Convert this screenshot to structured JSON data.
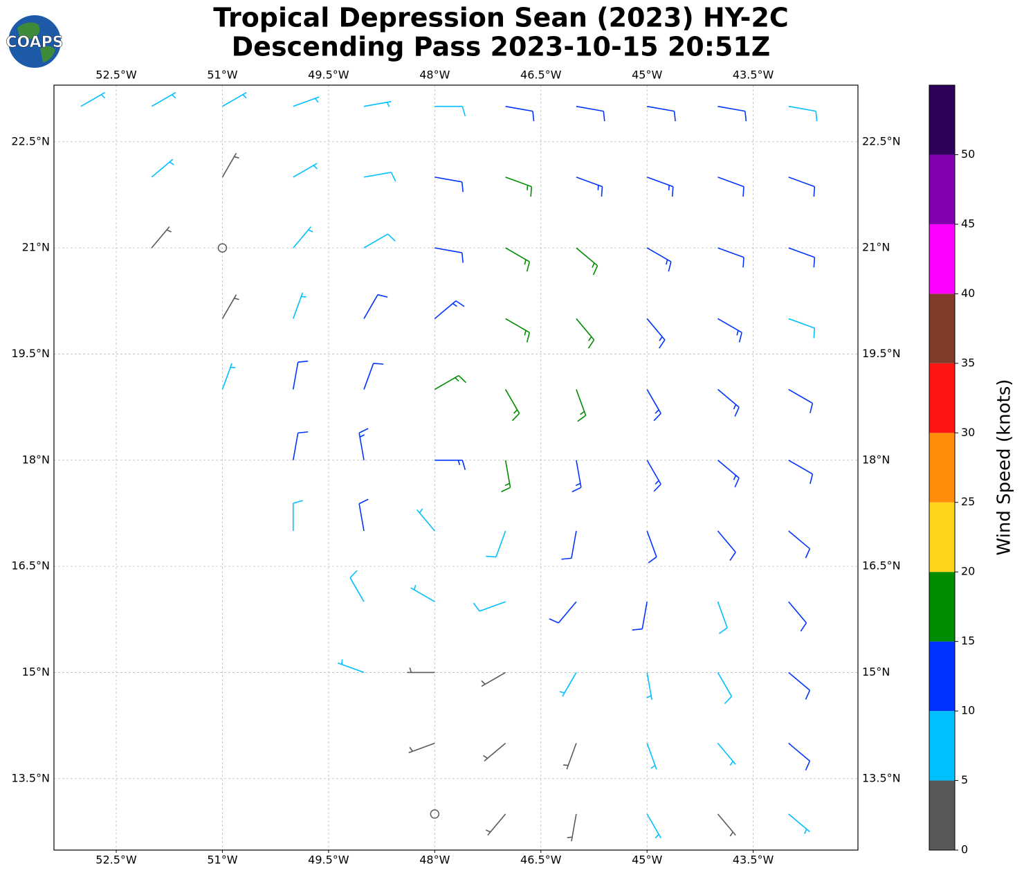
{
  "logo": "COAPS",
  "chart_data": {
    "type": "barbs",
    "title": "Tropical Depression Sean (2023) HY-2C",
    "subtitle": "Descending Pass 2023-10-15 20:51Z",
    "grid": true,
    "xlim": [
      -53.38,
      -42.02
    ],
    "ylim": [
      12.49,
      23.3
    ],
    "xticks": [
      {
        "value": -52.5,
        "label": "52.5°W"
      },
      {
        "value": -51,
        "label": "51°W"
      },
      {
        "value": -49.5,
        "label": "49.5°W"
      },
      {
        "value": -48,
        "label": "48°W"
      },
      {
        "value": -46.5,
        "label": "46.5°W"
      },
      {
        "value": -45,
        "label": "45°W"
      },
      {
        "value": -43.5,
        "label": "43.5°W"
      }
    ],
    "yticks": [
      {
        "value": 13.5,
        "label": "13.5°N"
      },
      {
        "value": 15,
        "label": "15°N"
      },
      {
        "value": 16.5,
        "label": "16.5°N"
      },
      {
        "value": 18,
        "label": "18°N"
      },
      {
        "value": 19.5,
        "label": "19.5°N"
      },
      {
        "value": 21,
        "label": "21°N"
      },
      {
        "value": 22.5,
        "label": "22.5°N"
      }
    ],
    "x": [
      -53,
      -52,
      -51,
      -50,
      -49,
      -48,
      -47,
      -46,
      -45,
      -44,
      -43,
      -52,
      -51,
      -50,
      -49,
      -48,
      -47,
      -46,
      -45,
      -44,
      -43,
      -52,
      -51,
      -50,
      -49,
      -48,
      -47,
      -46,
      -45,
      -44,
      -43,
      -51,
      -50,
      -49,
      -48,
      -47,
      -46,
      -45,
      -44,
      -43,
      -51,
      -50,
      -49,
      -48,
      -47,
      -46,
      -45,
      -44,
      -43,
      -50,
      -49,
      -48,
      -47,
      -46,
      -45,
      -44,
      -43,
      -50,
      -49,
      -48,
      -47,
      -46,
      -45,
      -44,
      -43,
      -49,
      -48,
      -47,
      -46,
      -45,
      -44,
      -43,
      -49,
      -48,
      -47,
      -46,
      -45,
      -44,
      -43,
      -48,
      -47,
      -46,
      -45,
      -44,
      -43,
      -48,
      -47,
      -46,
      -45,
      -44,
      -43
    ],
    "y": [
      23,
      23,
      23,
      23,
      23,
      23,
      23,
      23,
      23,
      23,
      23,
      22,
      22,
      22,
      22,
      22,
      22,
      22,
      22,
      22,
      22,
      21,
      21,
      21,
      21,
      21,
      21,
      21,
      21,
      21,
      21,
      20,
      20,
      20,
      20,
      20,
      20,
      20,
      20,
      20,
      19,
      19,
      19,
      19,
      19,
      19,
      19,
      19,
      19,
      18,
      18,
      18,
      18,
      18,
      18,
      18,
      18,
      17,
      17,
      17,
      17,
      17,
      17,
      17,
      17,
      16,
      16,
      16,
      16,
      16,
      16,
      16,
      15,
      15,
      15,
      15,
      15,
      15,
      15,
      14,
      14,
      14,
      14,
      14,
      14,
      13,
      13,
      13,
      13,
      13,
      13
    ],
    "speed": [
      7,
      7,
      7,
      6,
      7,
      8,
      11,
      12,
      12,
      11,
      9,
      6,
      3,
      6,
      8,
      11,
      16,
      13,
      13,
      12,
      11,
      3,
      2,
      7,
      8,
      12,
      16,
      17,
      14,
      12,
      10,
      3,
      7,
      11,
      13,
      16,
      16,
      14,
      13,
      9,
      6,
      11,
      12,
      17,
      17,
      16,
      14,
      13,
      11,
      11,
      13,
      13,
      17,
      14,
      13,
      13,
      12,
      9,
      12,
      7,
      9,
      12,
      12,
      10,
      11,
      8,
      7,
      8,
      11,
      10,
      9,
      11,
      7,
      4,
      3,
      7,
      6,
      8,
      11,
      3,
      3,
      4,
      6,
      7,
      11,
      2,
      3,
      4,
      6,
      4,
      7
    ],
    "direction": [
      60,
      60,
      60,
      70,
      80,
      90,
      100,
      100,
      100,
      100,
      100,
      50,
      30,
      60,
      80,
      100,
      110,
      110,
      110,
      110,
      110,
      40,
      20,
      40,
      60,
      100,
      120,
      130,
      120,
      110,
      110,
      30,
      20,
      30,
      50,
      120,
      140,
      140,
      120,
      110,
      20,
      10,
      20,
      60,
      150,
      160,
      150,
      130,
      120,
      10,
      350,
      90,
      170,
      170,
      150,
      130,
      120,
      360,
      350,
      320,
      200,
      190,
      160,
      140,
      130,
      330,
      300,
      250,
      220,
      190,
      160,
      140,
      290,
      270,
      240,
      210,
      170,
      150,
      130,
      250,
      230,
      200,
      160,
      140,
      130,
      240,
      220,
      190,
      150,
      140,
      130
    ],
    "colorbar": {
      "label": "Wind Speed (knots)",
      "bounds": [
        0,
        5,
        10,
        15,
        20,
        25,
        30,
        35,
        40,
        45,
        50,
        55
      ],
      "colors": [
        "#595959",
        "#00bfff",
        "#0033ff",
        "#008c00",
        "#ffd41a",
        "#ff8c0a",
        "#ff1414",
        "#803c28",
        "#ff00ff",
        "#8000b0",
        "#2d0059"
      ],
      "ticks": [
        0,
        5,
        10,
        15,
        20,
        25,
        30,
        35,
        40,
        45,
        50
      ]
    }
  }
}
